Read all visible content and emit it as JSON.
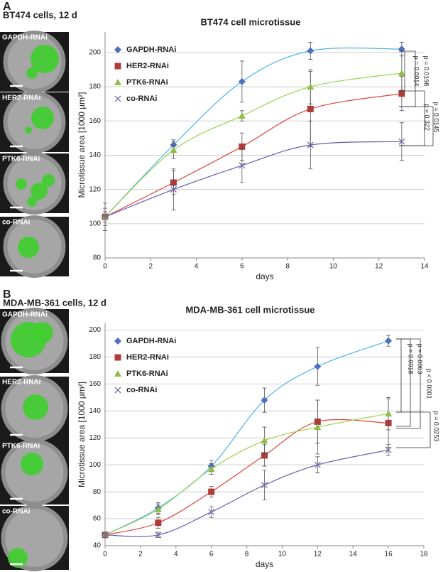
{
  "chart_data": [
    {
      "type": "scatter",
      "panel_label": "A",
      "caption": "BT474 cells, 12 d",
      "image_labels": [
        "GAPDH-RNAi",
        "HER2-RNAi",
        "PTK6-RNAi",
        "co-RNAi"
      ],
      "title": "BT474 cell microtissue",
      "x_label": "days",
      "y_label": "Microtissue area [1000 µm²]",
      "x": [
        0,
        3,
        6,
        9,
        13
      ],
      "series": [
        {
          "name": "GAPDH-RNAi",
          "color": "#4f6fbf",
          "line_color": "#4fb3e8",
          "marker": "diamond",
          "values": [
            104,
            146,
            183,
            201,
            202
          ],
          "errors": [
            3,
            3,
            12,
            5,
            4
          ]
        },
        {
          "name": "HER2-RNAi",
          "color": "#b03b3b",
          "line_color": "#d9463c",
          "marker": "square",
          "values": [
            104,
            124,
            145,
            167,
            176
          ],
          "errors": [
            5,
            7,
            8,
            22,
            10
          ]
        },
        {
          "name": "PTK6-RNAi",
          "color": "#8fbc4a",
          "line_color": "#9bd34e",
          "marker": "triangle",
          "values": [
            104,
            143,
            163,
            180,
            188
          ],
          "errors": [
            3,
            5,
            3,
            10,
            10
          ]
        },
        {
          "name": "co-RNAi",
          "color": "#7a6aa8",
          "line_color": "#6a5bb0",
          "marker": "x",
          "values": [
            104,
            120,
            134,
            146,
            148
          ],
          "errors": [
            8,
            12,
            10,
            14,
            11
          ]
        }
      ],
      "annotations": [
        "p = 0.0014",
        "p = 0.0198",
        "p = 0.322",
        "p = 0.0145"
      ],
      "xlim": [
        0,
        14
      ],
      "xticks": [
        0,
        2,
        4,
        6,
        8,
        10,
        12,
        14
      ],
      "ylim": [
        80,
        212
      ],
      "yticks": [
        80,
        100,
        120,
        140,
        160,
        180,
        200
      ],
      "grid": true,
      "legend": "top-left"
    },
    {
      "type": "scatter",
      "panel_label": "B",
      "caption": "MDA-MB-361 cells, 12 d",
      "image_labels": [
        "GAPDH-RNAi",
        "HER2-RNAi",
        "PTK6-RNAi",
        "co-RNAi"
      ],
      "title": "MDA-MB-361 cell microtissue",
      "x_label": "days",
      "y_label": "Microtissue area [1000 µm²]",
      "x": [
        0,
        3,
        6,
        9,
        12,
        16
      ],
      "series": [
        {
          "name": "GAPDH-RNAi",
          "color": "#4f6fbf",
          "line_color": "#4fb3e8",
          "marker": "diamond",
          "values": [
            48,
            68,
            99,
            148,
            173,
            192
          ],
          "errors": [
            2,
            4,
            4,
            9,
            14,
            4
          ]
        },
        {
          "name": "HER2-RNAi",
          "color": "#b03b3b",
          "line_color": "#d9463c",
          "marker": "square",
          "values": [
            48,
            57,
            80,
            107,
            132,
            131
          ],
          "errors": [
            2,
            4,
            4,
            8,
            16,
            18
          ]
        },
        {
          "name": "PTK6-RNAi",
          "color": "#8fbc4a",
          "line_color": "#9bd34e",
          "marker": "triangle",
          "values": [
            48,
            67,
            97,
            118,
            128,
            138
          ],
          "errors": [
            2,
            4,
            4,
            10,
            20,
            12
          ]
        },
        {
          "name": "co-RNAi",
          "color": "#7a6aa8",
          "line_color": "#6a5bb0",
          "marker": "x",
          "values": [
            48,
            48,
            65,
            85,
            100,
            111
          ],
          "errors": [
            2,
            2,
            4,
            11,
            6,
            4
          ]
        }
      ],
      "annotations": [
        "p = 0.0018",
        "p = 0.0063",
        "p < 0.0001",
        "p = 0.0253"
      ],
      "xlim": [
        0,
        18
      ],
      "xticks": [
        0,
        2,
        4,
        6,
        8,
        10,
        12,
        14,
        16,
        18
      ],
      "ylim": [
        40,
        205
      ],
      "yticks": [
        40,
        60,
        80,
        100,
        120,
        140,
        160,
        180,
        200
      ],
      "grid": true,
      "legend": "top-left"
    }
  ]
}
